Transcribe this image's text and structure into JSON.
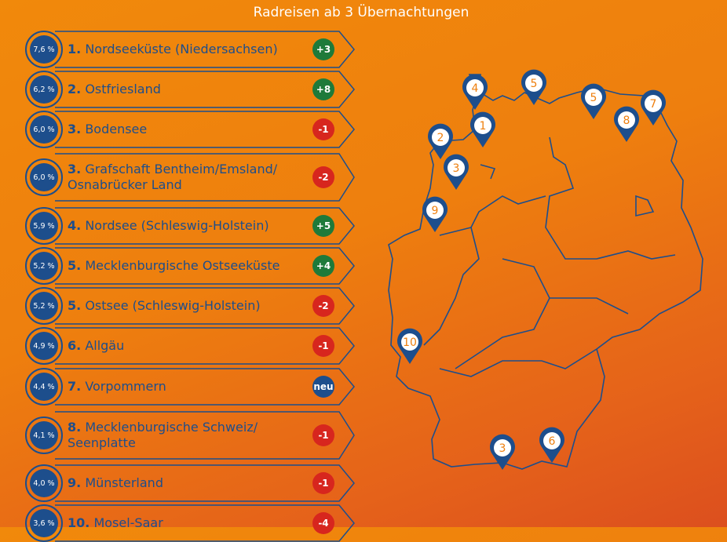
{
  "subtitle": "Radreisen ab 3 Übernachtungen",
  "colors": {
    "accent": "#1d4e8c",
    "up": "#1e7a3a",
    "down": "#d7261e",
    "new": "#1d4e8c",
    "background": "#ee7f0e"
  },
  "ranking": [
    {
      "share": "7,6 %",
      "rank": "1.",
      "name": "Nordseeküste (Niedersachsen)",
      "change": "+3",
      "trend": "up"
    },
    {
      "share": "6,2 %",
      "rank": "2.",
      "name": "Ostfriesland",
      "change": "+8",
      "trend": "up"
    },
    {
      "share": "6,0 %",
      "rank": "3.",
      "name": "Bodensee",
      "change": "-1",
      "trend": "down"
    },
    {
      "share": "6,0 %",
      "rank": "3.",
      "name": "Grafschaft Bentheim/Emsland/ Osnabrücker Land",
      "change": "-2",
      "trend": "down"
    },
    {
      "share": "5,9 %",
      "rank": "4.",
      "name": "Nordsee (Schleswig-Holstein)",
      "change": "+5",
      "trend": "up"
    },
    {
      "share": "5,2 %",
      "rank": "5.",
      "name": "Mecklenburgische Ostseeküste",
      "change": "+4",
      "trend": "up"
    },
    {
      "share": "5,2 %",
      "rank": "5.",
      "name": "Ostsee (Schleswig-Holstein)",
      "change": "-2",
      "trend": "down"
    },
    {
      "share": "4,9 %",
      "rank": "6.",
      "name": "Allgäu",
      "change": "-1",
      "trend": "down"
    },
    {
      "share": "4,4 %",
      "rank": "7.",
      "name": "Vorpommern",
      "change": "neu",
      "trend": "new"
    },
    {
      "share": "4,1 %",
      "rank": "8.",
      "name": "Mecklenburgische Schweiz/ Seenplatte",
      "change": "-1",
      "trend": "down"
    },
    {
      "share": "4,0 %",
      "rank": "9.",
      "name": "Münsterland",
      "change": "-1",
      "trend": "down"
    },
    {
      "share": "3,6 %",
      "rank": "10.",
      "name": "Mosel-Saar",
      "change": "-4",
      "trend": "down"
    }
  ],
  "map_pins": [
    "4",
    "5",
    "5",
    "7",
    "8",
    "2",
    "1",
    "3",
    "9",
    "10",
    "3",
    "6"
  ]
}
